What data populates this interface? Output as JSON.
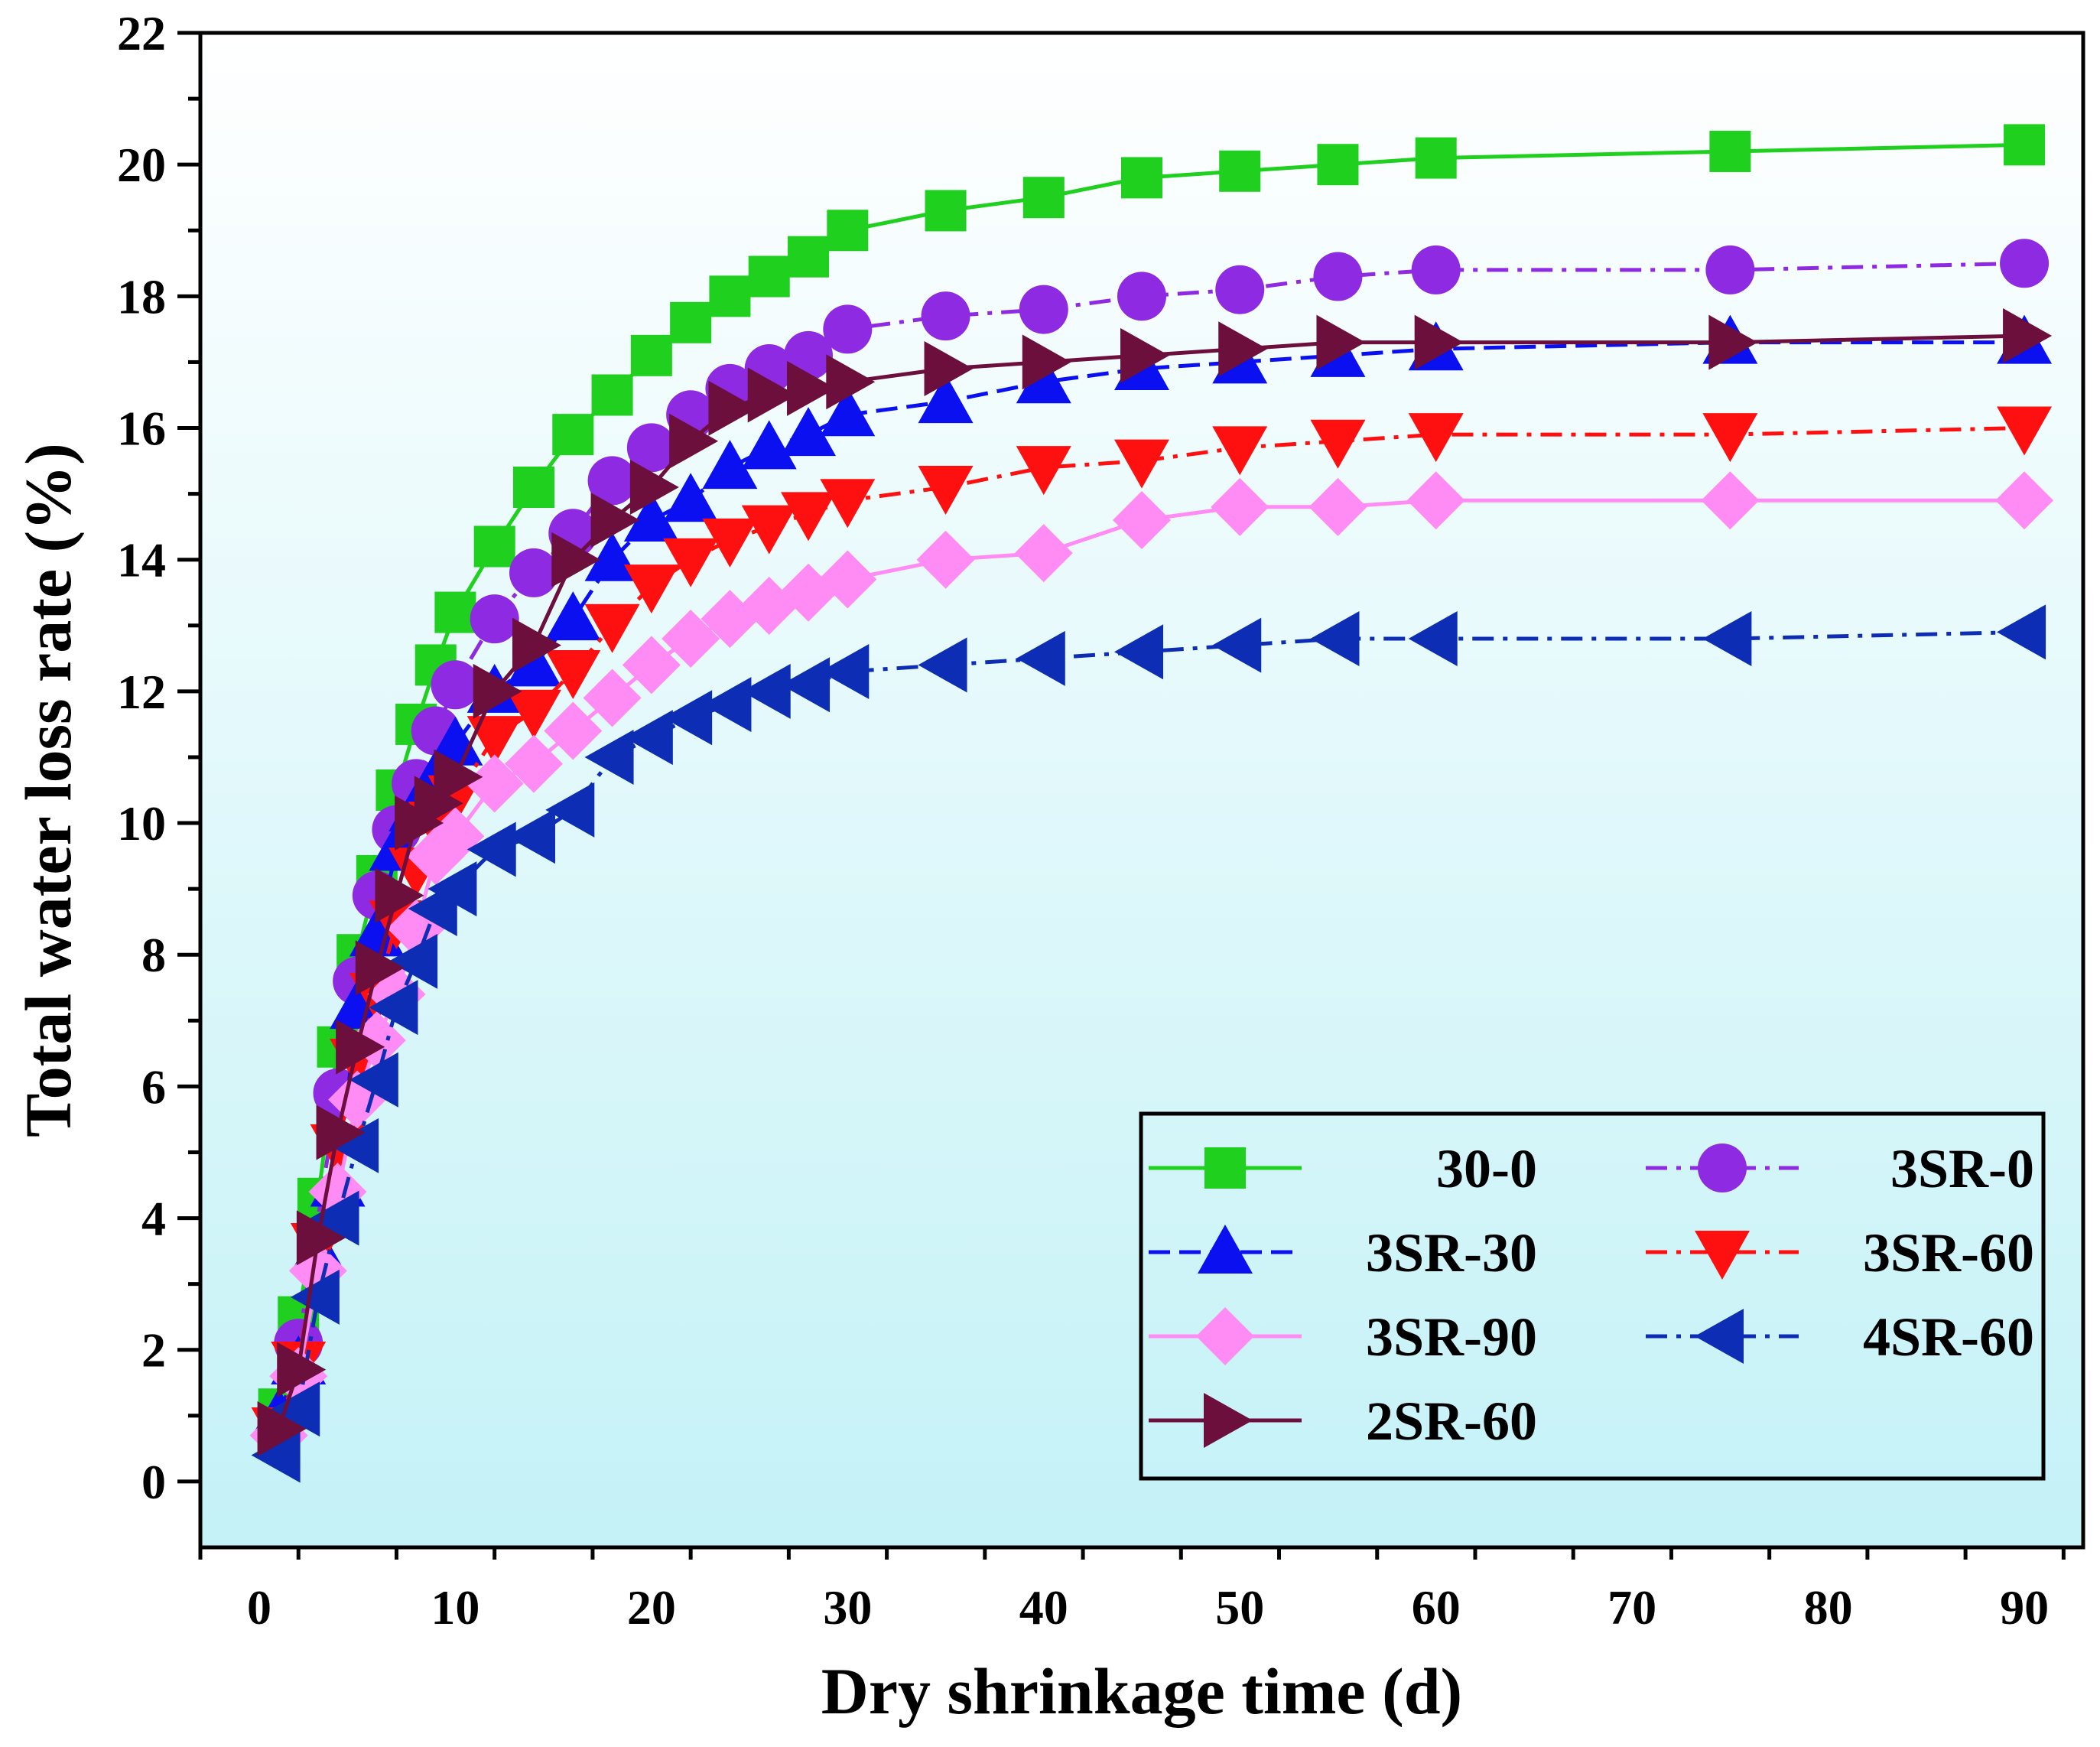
{
  "chart_data": {
    "type": "line",
    "xlabel": "Dry shrinkage time (d)",
    "ylabel": "Total water loss rate (%)",
    "xlim": [
      -3,
      93
    ],
    "ylim": [
      -1,
      22
    ],
    "xticks": [
      0,
      10,
      20,
      30,
      40,
      50,
      60,
      70,
      80,
      90
    ],
    "yticks": [
      0,
      2,
      4,
      6,
      8,
      10,
      12,
      14,
      16,
      18,
      20,
      22
    ],
    "legend_position": "bottom-right",
    "background_gradient": [
      "#ffffff",
      "#c4f2f7"
    ],
    "series": [
      {
        "name": "30-0",
        "color": "#1fd01f",
        "marker": "square",
        "dash": "",
        "x": [
          1,
          2,
          3,
          4,
          5,
          6,
          7,
          8,
          9,
          10,
          12,
          14,
          16,
          18,
          20,
          22,
          24,
          26,
          28,
          30,
          35,
          40,
          45,
          50,
          55,
          60,
          75,
          90
        ],
        "y": [
          1.1,
          2.5,
          4.3,
          6.6,
          8.0,
          9.2,
          10.5,
          11.5,
          12.4,
          13.2,
          14.2,
          15.1,
          15.9,
          16.5,
          17.1,
          17.6,
          18.0,
          18.3,
          18.6,
          19.0,
          19.3,
          19.5,
          19.8,
          19.9,
          20.0,
          20.1,
          20.2,
          20.3
        ]
      },
      {
        "name": "3SR-0",
        "color": "#8e2be2",
        "marker": "circle",
        "dash": "28 12 6 12",
        "x": [
          2,
          4,
          5,
          6,
          7,
          8,
          9,
          10,
          12,
          14,
          16,
          18,
          20,
          22,
          24,
          26,
          28,
          30,
          35,
          40,
          45,
          50,
          55,
          60,
          75,
          90
        ],
        "y": [
          2.1,
          5.9,
          7.6,
          8.9,
          9.9,
          10.6,
          11.4,
          12.1,
          13.1,
          13.8,
          14.4,
          15.2,
          15.7,
          16.2,
          16.6,
          16.9,
          17.1,
          17.5,
          17.7,
          17.8,
          18.0,
          18.1,
          18.3,
          18.4,
          18.4,
          18.5
        ]
      },
      {
        "name": "3SR-30",
        "color": "#0a10f0",
        "marker": "triangle-up",
        "dash": "28 12",
        "x": [
          1,
          2,
          3,
          4,
          5,
          6,
          7,
          8,
          9,
          10,
          12,
          14,
          16,
          18,
          20,
          22,
          24,
          26,
          28,
          30,
          35,
          40,
          45,
          50,
          55,
          60,
          75,
          90
        ],
        "y": [
          1.0,
          1.8,
          3.5,
          4.5,
          7.2,
          8.3,
          9.6,
          10.2,
          10.7,
          11.2,
          12.0,
          12.4,
          13.1,
          14.0,
          14.6,
          14.9,
          15.4,
          15.7,
          15.9,
          16.2,
          16.4,
          16.7,
          16.9,
          17.0,
          17.1,
          17.2,
          17.3,
          17.3
        ]
      },
      {
        "name": "3SR-60",
        "color": "#ff1010",
        "marker": "triangle-down",
        "dash": "28 12 6 12",
        "x": [
          1,
          2,
          3,
          4,
          5,
          6,
          7,
          8,
          9,
          10,
          12,
          14,
          16,
          18,
          20,
          22,
          24,
          26,
          28,
          30,
          35,
          40,
          45,
          50,
          55,
          60,
          75,
          90
        ],
        "y": [
          0.8,
          1.8,
          3.6,
          5.1,
          6.4,
          7.4,
          8.5,
          9.3,
          10.0,
          10.4,
          11.3,
          11.7,
          12.3,
          13.0,
          13.6,
          14.0,
          14.3,
          14.5,
          14.7,
          14.9,
          15.1,
          15.4,
          15.5,
          15.7,
          15.8,
          15.9,
          15.9,
          16.0
        ]
      },
      {
        "name": "3SR-90",
        "color": "#ff8cf5",
        "marker": "diamond",
        "dash": "",
        "x": [
          1,
          2,
          3,
          4,
          5,
          6,
          7,
          8,
          9,
          10,
          12,
          14,
          16,
          18,
          20,
          22,
          24,
          26,
          28,
          30,
          35,
          40,
          45,
          50,
          55,
          60,
          75,
          90
        ],
        "y": [
          0.7,
          1.6,
          3.2,
          4.4,
          5.8,
          6.7,
          7.4,
          8.4,
          9.5,
          9.8,
          10.6,
          10.9,
          11.4,
          11.9,
          12.4,
          12.8,
          13.1,
          13.3,
          13.5,
          13.7,
          14.0,
          14.1,
          14.6,
          14.8,
          14.8,
          14.9,
          14.9,
          14.9
        ]
      },
      {
        "name": "4SR-60",
        "color": "#0d2db5",
        "marker": "triangle-left",
        "dash": "28 12 6 12",
        "x": [
          1,
          2,
          3,
          4,
          5,
          6,
          7,
          8,
          9,
          10,
          12,
          14,
          16,
          18,
          20,
          22,
          24,
          26,
          28,
          30,
          35,
          40,
          45,
          50,
          55,
          60,
          75,
          90
        ],
        "y": [
          0.4,
          1.1,
          2.8,
          4.0,
          5.1,
          6.1,
          7.2,
          7.9,
          8.7,
          9.0,
          9.6,
          9.8,
          10.2,
          11.0,
          11.3,
          11.6,
          11.8,
          12.0,
          12.1,
          12.3,
          12.4,
          12.5,
          12.6,
          12.7,
          12.8,
          12.8,
          12.8,
          12.9
        ]
      },
      {
        "name": "2SR-60",
        "color": "#6c0f3c",
        "marker": "triangle-right",
        "dash": "",
        "x": [
          1,
          2,
          3,
          4,
          5,
          6,
          7,
          8,
          9,
          10,
          12,
          14,
          16,
          18,
          20,
          22,
          24,
          26,
          28,
          30,
          35,
          40,
          45,
          50,
          55,
          60,
          75,
          90
        ],
        "y": [
          0.8,
          1.7,
          3.7,
          5.3,
          6.6,
          7.8,
          8.9,
          10.0,
          10.3,
          10.7,
          12.0,
          12.7,
          14.0,
          14.6,
          15.1,
          15.8,
          16.3,
          16.5,
          16.6,
          16.7,
          16.9,
          17.0,
          17.1,
          17.2,
          17.3,
          17.3,
          17.3,
          17.4
        ]
      }
    ]
  }
}
